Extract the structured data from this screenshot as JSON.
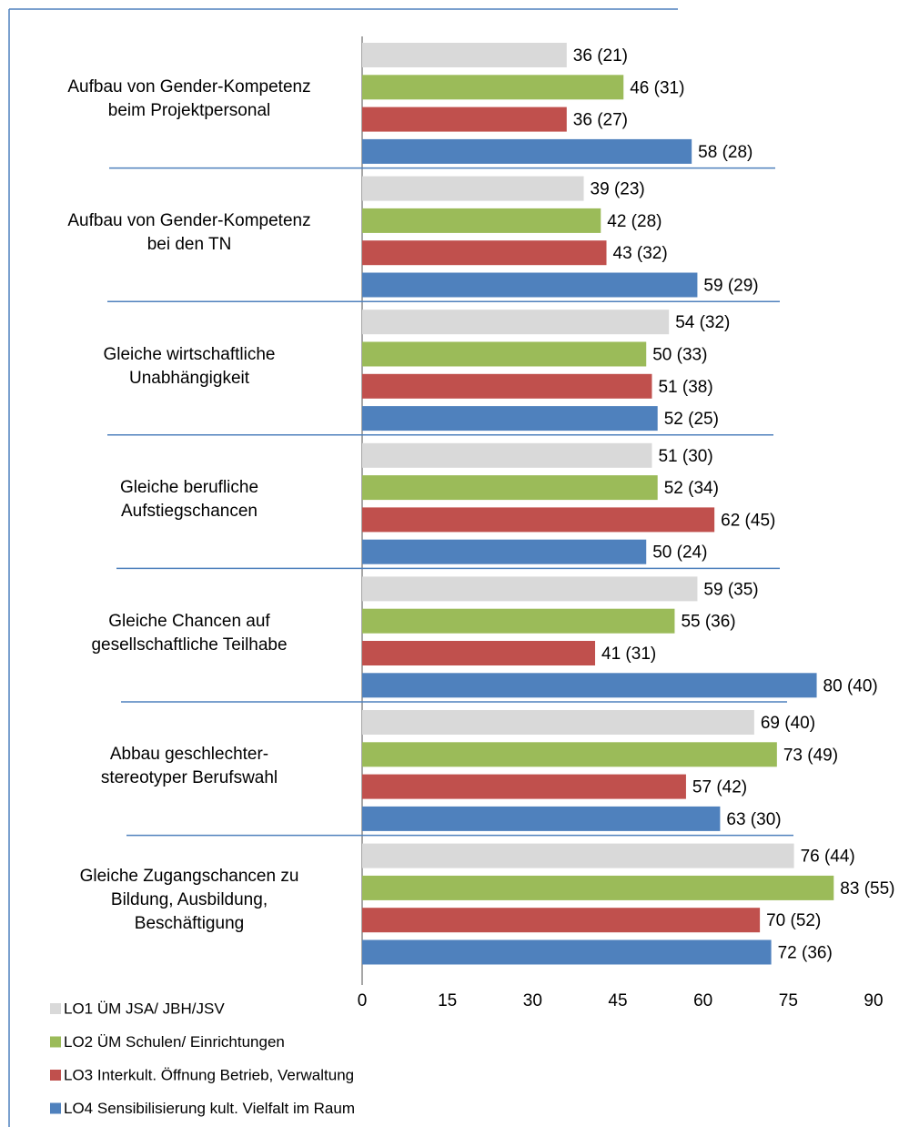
{
  "chart_data": {
    "type": "bar",
    "orientation": "horizontal",
    "categories": [
      "Aufbau von Gender-Kompetenz\nbeim Projektpersonal",
      "Aufbau von Gender-Kompetenz\nbei den TN",
      "Gleiche wirtschaftliche\nUnabhängigkeit",
      "Gleiche berufliche\nAufstiegschancen",
      "Gleiche Chancen auf\ngesellschaftliche Teilhabe",
      "Abbau geschlechter-\nstereotyper Berufswahl",
      "Gleiche Zugangschancen zu\nBildung, Ausbildung,\nBeschäftigung"
    ],
    "series": [
      {
        "name": "LO1 ÜM JSA/ JBH/JSV",
        "color": "#d9d9d9",
        "values": [
          36,
          39,
          54,
          51,
          59,
          69,
          76
        ],
        "value_labels": [
          "36 (21)",
          "39 (23)",
          "54 (32)",
          "51 (30)",
          "59 (35)",
          "69 (40)",
          "76 (44)"
        ]
      },
      {
        "name": "LO2 ÜM Schulen/ Einrichtungen",
        "color": "#9bbb59",
        "values": [
          46,
          42,
          50,
          52,
          55,
          73,
          83
        ],
        "value_labels": [
          "46 (31)",
          "42 (28)",
          "50 (33)",
          "52 (34)",
          "55 (36)",
          "73 (49)",
          "83 (55)"
        ]
      },
      {
        "name": "LO3 Interkult. Öffnung Betrieb, Verwaltung",
        "color": "#c0504d",
        "values": [
          36,
          43,
          51,
          62,
          41,
          57,
          70
        ],
        "value_labels": [
          "36 (27)",
          "43 (32)",
          "51 (38)",
          "62 (45)",
          "41 (31)",
          "57 (42)",
          "70 (52)"
        ]
      },
      {
        "name": "LO4 Sensibilisierung kult. Vielfalt im Raum",
        "color": "#4f81bd",
        "values": [
          58,
          59,
          52,
          50,
          80,
          63,
          72
        ],
        "value_labels": [
          "58 (28)",
          "59 (29)",
          "52 (25)",
          "50 (24)",
          "80 (40)",
          "63 (30)",
          "72 (36)"
        ]
      }
    ],
    "xlim": [
      0,
      90
    ],
    "xticks": [
      0,
      15,
      30,
      45,
      60,
      75,
      90
    ],
    "grid": false,
    "legend": "bottom-left"
  }
}
